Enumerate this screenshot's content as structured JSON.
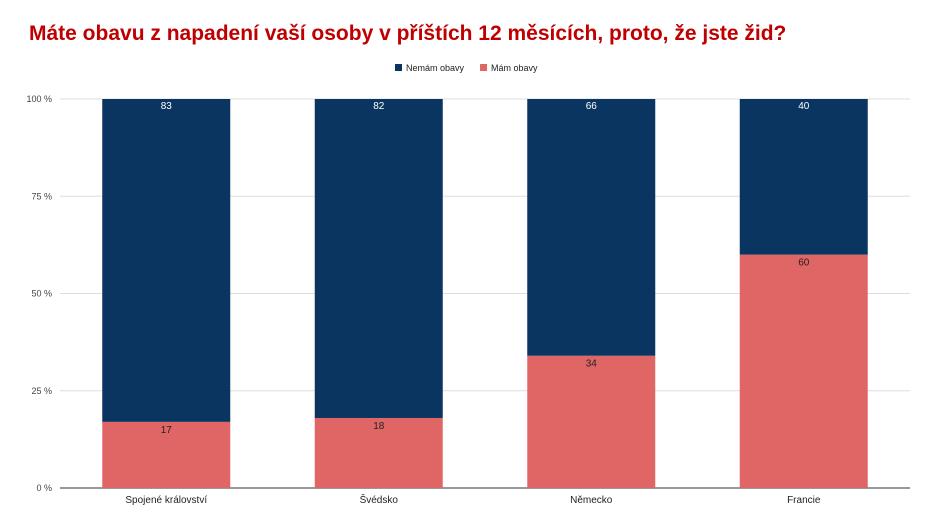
{
  "colors": {
    "title": "#c00000",
    "nemam": "#0b3561",
    "mam": "#e06666",
    "grid": "#dddddd",
    "axis": "#333333",
    "label_on_dark": "#ffffff",
    "label_on_light": "#222222"
  },
  "chart_data": {
    "type": "bar",
    "stacked": true,
    "title": "Máte obavu z napadení vaší osoby v příštích 12 měsících, proto, že jste žid?",
    "xlabel": "",
    "ylabel": "",
    "categories": [
      "Spojené království",
      "Švédsko",
      "Německo",
      "Francie"
    ],
    "series": [
      {
        "name": "Mám obavy",
        "values": [
          17,
          18,
          34,
          60
        ]
      },
      {
        "name": "Nemám obavy",
        "values": [
          83,
          82,
          66,
          40
        ]
      }
    ],
    "legend_order": [
      "Nemám obavy",
      "Mám obavy"
    ],
    "ylim": [
      0,
      100
    ],
    "yticks": [
      "0 %",
      "25 %",
      "50 %",
      "75 %",
      "100 %"
    ],
    "grid": true,
    "legend_position": "top-center"
  }
}
